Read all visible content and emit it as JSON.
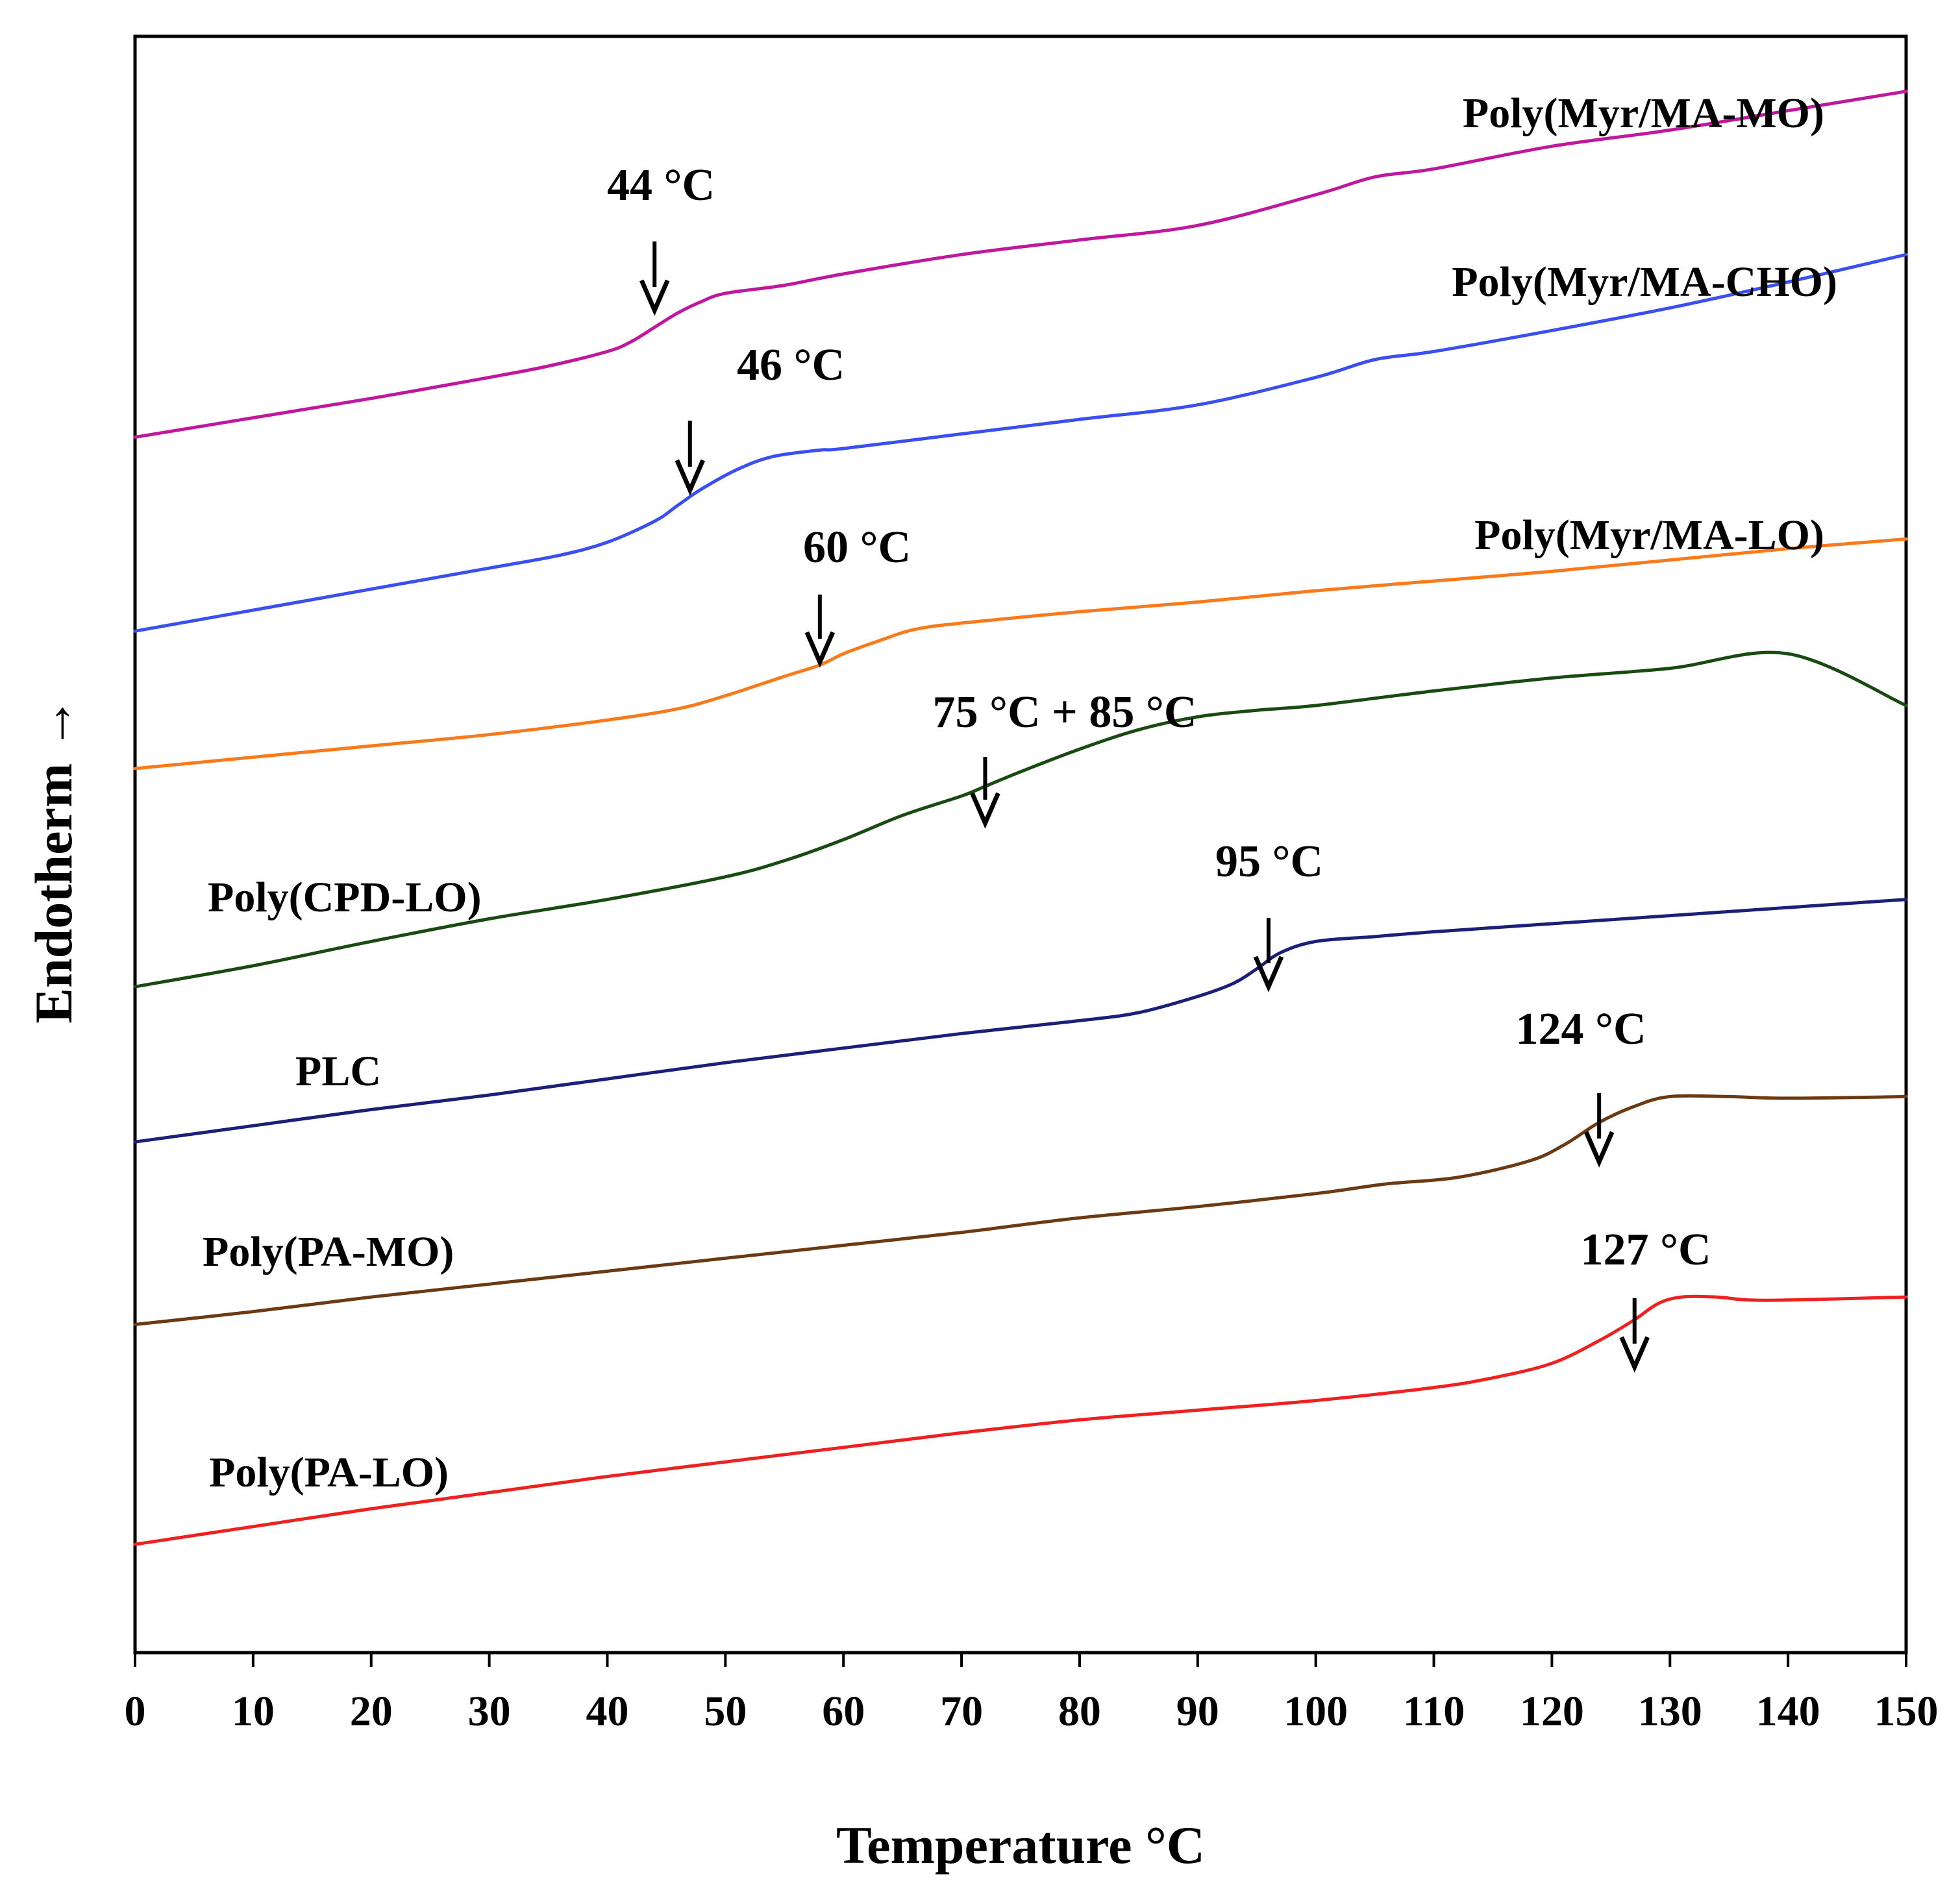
{
  "chart_data": {
    "type": "line",
    "title": "",
    "xlabel": "Temperature °C",
    "ylabel": "Endotherm →",
    "xlim": [
      0,
      150
    ],
    "ylim": [
      0,
      100
    ],
    "xticks": [
      "0",
      "10",
      "20",
      "30",
      "40",
      "50",
      "60",
      "70",
      "80",
      "90",
      "100",
      "110",
      "120",
      "130",
      "140",
      "150"
    ],
    "yticks_shown": false,
    "grid": false,
    "legend": "none (labels placed next to curves)",
    "series": [
      {
        "name": "Poly(Myr/MA-MO)",
        "color": "#c0189c",
        "x": [
          0,
          10,
          20,
          30,
          35,
          40,
          42,
          44,
          46,
          48,
          50,
          55,
          60,
          70,
          80,
          90,
          100,
          105,
          110,
          120,
          130,
          140,
          150
        ],
        "y": [
          75.2,
          76.4,
          77.6,
          78.9,
          79.6,
          80.5,
          81.1,
          82.0,
          82.9,
          83.6,
          84.1,
          84.6,
          85.3,
          86.5,
          87.4,
          88.3,
          90.2,
          91.3,
          91.8,
          93.2,
          94.2,
          95.4,
          96.6
        ]
      },
      {
        "name": "Poly(Myr/MA-CHO)",
        "color": "#3a4ff0",
        "x": [
          0,
          10,
          20,
          30,
          36,
          40,
          44,
          46,
          48,
          51,
          54,
          58,
          60,
          70,
          80,
          90,
          100,
          105,
          110,
          120,
          130,
          140,
          150
        ],
        "y": [
          63.2,
          64.5,
          65.8,
          67.1,
          67.9,
          68.7,
          70.0,
          71.0,
          72.0,
          73.2,
          74.0,
          74.4,
          74.5,
          75.4,
          76.3,
          77.2,
          78.9,
          80.0,
          80.5,
          81.8,
          83.2,
          84.8,
          86.5
        ]
      },
      {
        "name": "Poly(Myr/MA-LO)",
        "color": "#f97a1a",
        "x": [
          0,
          10,
          20,
          30,
          40,
          46,
          50,
          55,
          58,
          60,
          63,
          66,
          70,
          80,
          90,
          100,
          110,
          120,
          130,
          140,
          150
        ],
        "y": [
          54.7,
          55.4,
          56.1,
          56.8,
          57.7,
          58.4,
          59.2,
          60.4,
          61.1,
          61.8,
          62.6,
          63.3,
          63.7,
          64.4,
          65.0,
          65.7,
          66.3,
          66.9,
          67.6,
          68.3,
          68.9
        ]
      },
      {
        "name": "Poly(CPD-LO)",
        "color": "#184a12",
        "x": [
          0,
          10,
          20,
          30,
          40,
          50,
          55,
          60,
          65,
          70,
          72,
          75,
          80,
          85,
          90,
          95,
          100,
          110,
          120,
          130,
          140,
          150
        ],
        "y": [
          41.2,
          42.5,
          44.0,
          45.4,
          46.6,
          48.0,
          49.0,
          50.3,
          51.8,
          53.0,
          53.6,
          54.5,
          55.9,
          57.1,
          57.9,
          58.3,
          58.6,
          59.5,
          60.3,
          60.9,
          61.8,
          58.6
        ]
      },
      {
        "name": "PLC",
        "color": "#1a1f78",
        "x": [
          0,
          10,
          20,
          30,
          40,
          50,
          60,
          70,
          80,
          85,
          90,
          93,
          95,
          97,
          100,
          105,
          110,
          120,
          130,
          140,
          150
        ],
        "y": [
          31.6,
          32.6,
          33.6,
          34.5,
          35.5,
          36.5,
          37.4,
          38.3,
          39.1,
          39.6,
          40.6,
          41.4,
          42.3,
          43.3,
          44.0,
          44.3,
          44.6,
          45.1,
          45.6,
          46.1,
          46.6
        ]
      },
      {
        "name": "Poly(PA-MO)",
        "color": "#6b3a12",
        "x": [
          0,
          10,
          20,
          30,
          40,
          50,
          60,
          70,
          80,
          90,
          100,
          106,
          112,
          118,
          121,
          124,
          127,
          130,
          135,
          140,
          150
        ],
        "y": [
          20.3,
          21.1,
          22.0,
          22.8,
          23.6,
          24.4,
          25.2,
          26.0,
          26.9,
          27.6,
          28.4,
          29.0,
          29.4,
          30.4,
          31.4,
          32.8,
          33.8,
          34.4,
          34.4,
          34.3,
          34.4
        ]
      },
      {
        "name": "Poly(PA-LO)",
        "color": "#ee2020",
        "x": [
          0,
          10,
          20,
          30,
          40,
          50,
          60,
          70,
          80,
          90,
          100,
          110,
          115,
          120,
          124,
          127,
          129,
          131,
          134,
          138,
          150
        ],
        "y": [
          6.7,
          7.8,
          8.9,
          9.9,
          10.9,
          11.8,
          12.7,
          13.6,
          14.4,
          15.0,
          15.6,
          16.4,
          17.0,
          17.9,
          19.3,
          20.6,
          21.6,
          22.0,
          22.0,
          21.8,
          22.0
        ]
      }
    ],
    "annotations": [
      {
        "text": "44 °C",
        "x": 44
      },
      {
        "text": "46 °C",
        "x": 47
      },
      {
        "text": "60 °C",
        "x": 58
      },
      {
        "text": "75 °C + 85 °C",
        "x": 72
      },
      {
        "text": "95 °C",
        "x": 96
      },
      {
        "text": "124 °C",
        "x": 124
      },
      {
        "text": "127 °C",
        "x": 127
      }
    ]
  }
}
